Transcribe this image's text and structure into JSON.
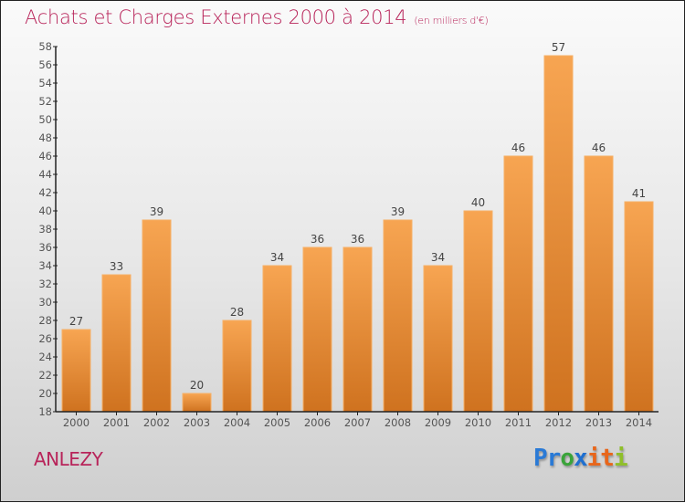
{
  "header": {
    "title": "Achats et Charges Externes 2000 à 2014",
    "subtitle": "(en milliers d'€)"
  },
  "footer": {
    "town": "ANLEZY",
    "logo_letters": [
      {
        "ch": "P",
        "color": "#2a7ad6"
      },
      {
        "ch": "r",
        "color": "#2a7ad6"
      },
      {
        "ch": "o",
        "color": "#3aa43a"
      },
      {
        "ch": "x",
        "color": "#1f6fd0"
      },
      {
        "ch": "i",
        "color": "#e8661b"
      },
      {
        "ch": "t",
        "color": "#e8661b"
      },
      {
        "ch": "i",
        "color": "#8fbf2a"
      }
    ]
  },
  "colors": {
    "title": "#b8245a",
    "bar_top": "#f7a552",
    "bar_bottom": "#cf721f",
    "bar_edge": "#f6b066"
  },
  "chart_data": {
    "type": "bar",
    "title": "Achats et Charges Externes 2000 à 2014",
    "subtitle": "(en milliers d'€)",
    "xlabel": "",
    "ylabel": "",
    "categories": [
      "2000",
      "2001",
      "2002",
      "2003",
      "2004",
      "2005",
      "2006",
      "2007",
      "2008",
      "2009",
      "2010",
      "2011",
      "2012",
      "2013",
      "2014"
    ],
    "values": [
      27,
      33,
      39,
      20,
      28,
      34,
      36,
      36,
      39,
      34,
      40,
      46,
      57,
      46,
      41
    ],
    "ylim": [
      18,
      58
    ],
    "yticks": [
      18,
      20,
      22,
      24,
      26,
      28,
      30,
      32,
      34,
      36,
      38,
      40,
      42,
      44,
      46,
      48,
      50,
      52,
      54,
      56,
      58
    ],
    "grid": false,
    "legend": "none",
    "data_labels": true
  }
}
